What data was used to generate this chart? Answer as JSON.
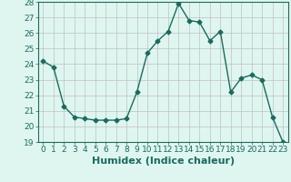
{
  "x": [
    0,
    1,
    2,
    3,
    4,
    5,
    6,
    7,
    8,
    9,
    10,
    11,
    12,
    13,
    14,
    15,
    16,
    17,
    18,
    19,
    20,
    21,
    22,
    23
  ],
  "y": [
    24.2,
    23.8,
    21.3,
    20.6,
    20.5,
    20.4,
    20.4,
    20.4,
    20.5,
    22.2,
    24.7,
    25.5,
    26.1,
    27.9,
    26.8,
    26.7,
    25.5,
    26.1,
    22.2,
    23.1,
    23.3,
    23.0,
    20.6,
    19.0
  ],
  "line_color": "#1a6b5e",
  "marker": "D",
  "marker_size": 2.5,
  "bg_color": "#dff5ef",
  "grid_color": "#c0c0c0",
  "xlabel": "Humidex (Indice chaleur)",
  "ylim": [
    19,
    28
  ],
  "xlim_min": -0.5,
  "xlim_max": 23.5,
  "yticks": [
    19,
    20,
    21,
    22,
    23,
    24,
    25,
    26,
    27,
    28
  ],
  "xticks": [
    0,
    1,
    2,
    3,
    4,
    5,
    6,
    7,
    8,
    9,
    10,
    11,
    12,
    13,
    14,
    15,
    16,
    17,
    18,
    19,
    20,
    21,
    22,
    23
  ],
  "xtick_labels": [
    "0",
    "1",
    "2",
    "3",
    "4",
    "5",
    "6",
    "7",
    "8",
    "9",
    "10",
    "11",
    "12",
    "13",
    "14",
    "15",
    "16",
    "17",
    "18",
    "19",
    "20",
    "21",
    "22",
    "23"
  ],
  "tick_fontsize": 6.5,
  "xlabel_fontsize": 8
}
